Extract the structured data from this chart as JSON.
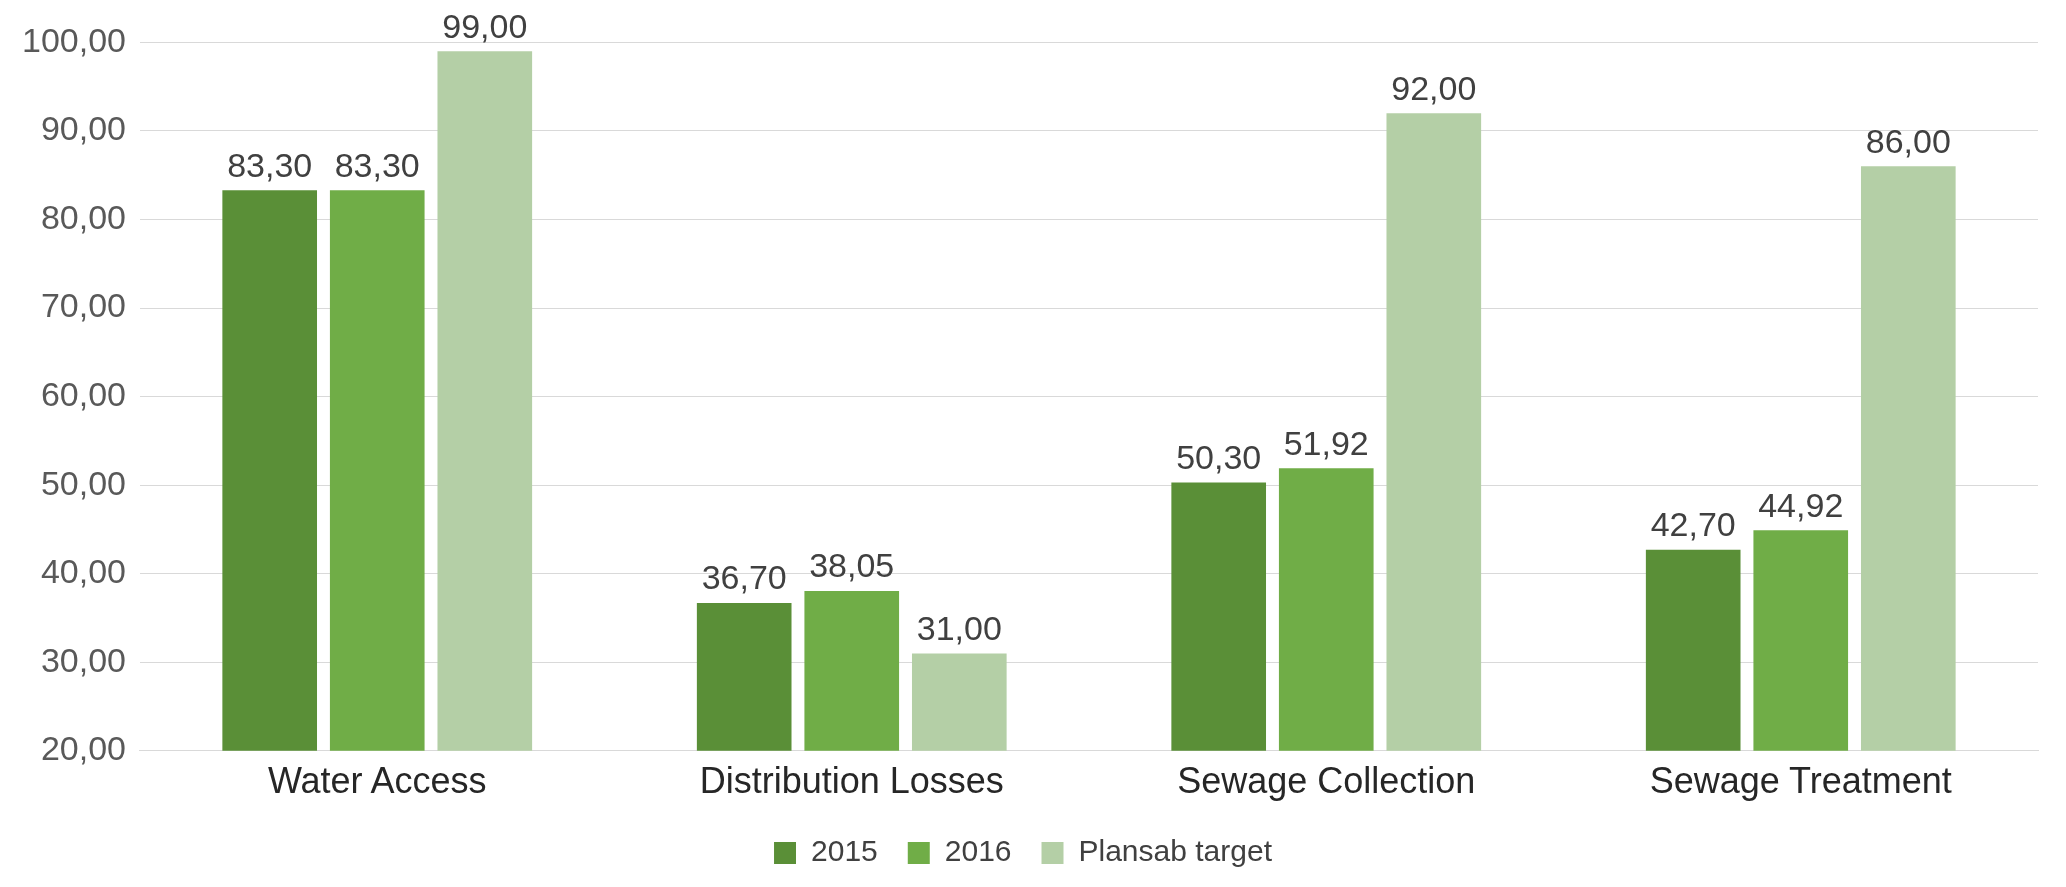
{
  "chart_data": {
    "type": "bar",
    "categories": [
      "Water Access",
      "Distribution Losses",
      "Sewage Collection",
      "Sewage Treatment"
    ],
    "series": [
      {
        "name": "2015",
        "color": "#5a8f37",
        "values": [
          83.3,
          36.7,
          50.3,
          42.7
        ],
        "value_labels": [
          "83,30",
          "36,70",
          "50,30",
          "42,70"
        ]
      },
      {
        "name": "2016",
        "color": "#70ad47",
        "values": [
          83.3,
          38.05,
          51.92,
          44.92
        ],
        "value_labels": [
          "83,30",
          "38,05",
          "51,92",
          "44,92"
        ]
      },
      {
        "name": "Plansab target",
        "color": "#b4cfa6",
        "values": [
          99,
          31,
          92,
          86
        ],
        "value_labels": [
          "99,00",
          "31,00",
          "92,00",
          "86,00"
        ]
      }
    ],
    "ylim": [
      20,
      100
    ],
    "yticks": [
      {
        "value": 20,
        "label": "20,00"
      },
      {
        "value": 30,
        "label": "30,00"
      },
      {
        "value": 40,
        "label": "40,00"
      },
      {
        "value": 50,
        "label": "50,00"
      },
      {
        "value": 60,
        "label": "60,00"
      },
      {
        "value": 70,
        "label": "70,00"
      },
      {
        "value": 80,
        "label": "80,00"
      },
      {
        "value": 90,
        "label": "90,00"
      },
      {
        "value": 100,
        "label": "100,00"
      }
    ],
    "grid": "y",
    "legend": "bottom"
  }
}
